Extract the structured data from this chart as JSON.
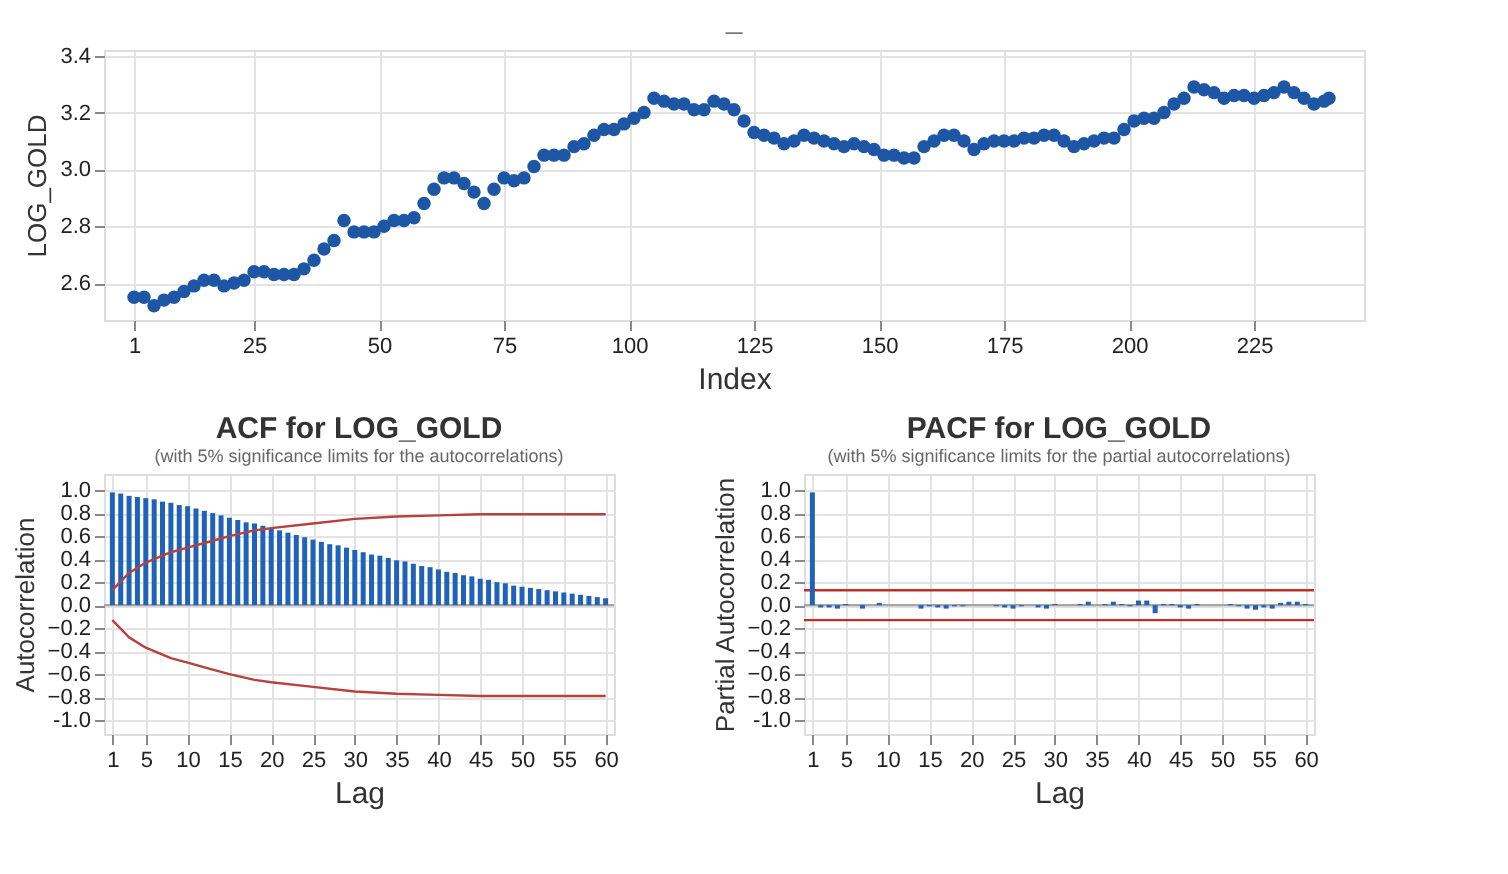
{
  "chart_data": [
    {
      "type": "scatter",
      "title": "_",
      "xlabel": "Index",
      "ylabel": "LOG_GOLD",
      "marker": "circle",
      "grid": true,
      "x": [
        1,
        3,
        5,
        7,
        9,
        11,
        13,
        15,
        17,
        19,
        21,
        23,
        25,
        27,
        29,
        31,
        33,
        35,
        37,
        39,
        41,
        43,
        45,
        47,
        49,
        51,
        53,
        55,
        57,
        59,
        61,
        63,
        65,
        67,
        69,
        71,
        73,
        75,
        77,
        79,
        81,
        83,
        85,
        87,
        89,
        91,
        93,
        95,
        97,
        99,
        101,
        103,
        105,
        107,
        109,
        111,
        113,
        115,
        117,
        119,
        121,
        123,
        125,
        127,
        129,
        131,
        133,
        135,
        137,
        139,
        141,
        143,
        145,
        147,
        149,
        151,
        153,
        155,
        157,
        159,
        161,
        163,
        165,
        167,
        169,
        171,
        173,
        175,
        177,
        179,
        181,
        183,
        185,
        187,
        189,
        191,
        193,
        195,
        197,
        199,
        201,
        203,
        205,
        207,
        209,
        211,
        213,
        215,
        217,
        219,
        221,
        223,
        225,
        227,
        229,
        231,
        233,
        235,
        237,
        239,
        240
      ],
      "series": [
        {
          "color": "#1d56a5",
          "values": [
            2.55,
            2.55,
            2.52,
            2.54,
            2.55,
            2.57,
            2.59,
            2.61,
            2.61,
            2.59,
            2.6,
            2.61,
            2.64,
            2.64,
            2.63,
            2.63,
            2.63,
            2.65,
            2.68,
            2.72,
            2.75,
            2.82,
            2.78,
            2.78,
            2.78,
            2.8,
            2.82,
            2.82,
            2.83,
            2.88,
            2.93,
            2.97,
            2.97,
            2.95,
            2.92,
            2.88,
            2.93,
            2.97,
            2.96,
            2.97,
            3.01,
            3.05,
            3.05,
            3.05,
            3.08,
            3.09,
            3.12,
            3.14,
            3.14,
            3.16,
            3.18,
            3.2,
            3.25,
            3.24,
            3.23,
            3.23,
            3.21,
            3.21,
            3.24,
            3.23,
            3.21,
            3.17,
            3.13,
            3.12,
            3.11,
            3.09,
            3.1,
            3.12,
            3.11,
            3.1,
            3.09,
            3.08,
            3.09,
            3.08,
            3.07,
            3.05,
            3.05,
            3.04,
            3.04,
            3.08,
            3.1,
            3.12,
            3.12,
            3.1,
            3.07,
            3.09,
            3.1,
            3.1,
            3.1,
            3.11,
            3.11,
            3.12,
            3.12,
            3.1,
            3.08,
            3.09,
            3.1,
            3.11,
            3.11,
            3.14,
            3.17,
            3.18,
            3.18,
            3.2,
            3.23,
            3.25,
            3.29,
            3.28,
            3.27,
            3.25,
            3.26,
            3.26,
            3.25,
            3.26,
            3.27,
            3.29,
            3.27,
            3.25,
            3.23,
            3.24,
            3.25
          ]
        }
      ],
      "xlim": [
        -5,
        247
      ],
      "ylim": [
        2.47,
        3.42
      ],
      "xticks": [
        1,
        25,
        50,
        75,
        100,
        125,
        150,
        175,
        200,
        225
      ],
      "yticks": [
        2.6,
        2.8,
        {
          "value": 3,
          "label": "3.0"
        },
        3.2,
        3.4
      ]
    },
    {
      "type": "bar",
      "title": "ACF for LOG_GOLD",
      "subtitle": "(with 5% significance limits for the autocorrelations)",
      "xlabel": "Lag",
      "ylabel": "Autocorrelation",
      "grid": true,
      "x": [
        1,
        2,
        3,
        4,
        5,
        6,
        7,
        8,
        9,
        10,
        11,
        12,
        13,
        14,
        15,
        16,
        17,
        18,
        19,
        20,
        21,
        22,
        23,
        24,
        25,
        26,
        27,
        28,
        29,
        30,
        31,
        32,
        33,
        34,
        35,
        36,
        37,
        38,
        39,
        40,
        41,
        42,
        43,
        44,
        45,
        46,
        47,
        48,
        49,
        50,
        51,
        52,
        53,
        54,
        55,
        56,
        57,
        58,
        59,
        60
      ],
      "series": [
        {
          "color": "#1f62b8",
          "values": [
            0.98,
            0.97,
            0.95,
            0.94,
            0.93,
            0.92,
            0.9,
            0.89,
            0.87,
            0.86,
            0.84,
            0.82,
            0.8,
            0.78,
            0.76,
            0.74,
            0.72,
            0.71,
            0.69,
            0.67,
            0.65,
            0.63,
            0.61,
            0.59,
            0.57,
            0.55,
            0.53,
            0.52,
            0.5,
            0.48,
            0.46,
            0.44,
            0.43,
            0.41,
            0.39,
            0.38,
            0.36,
            0.34,
            0.33,
            0.31,
            0.29,
            0.28,
            0.26,
            0.25,
            0.23,
            0.22,
            0.2,
            0.19,
            0.17,
            0.16,
            0.15,
            0.14,
            0.13,
            0.12,
            0.11,
            0.1,
            0.09,
            0.08,
            0.07,
            0.06
          ]
        },
        {
          "type": "line",
          "color": "#b5423f",
          "x": [
            1,
            3,
            5,
            8,
            10,
            13,
            15,
            18,
            20,
            25,
            30,
            35,
            40,
            45,
            50,
            55,
            60
          ],
          "values": [
            0.13,
            0.28,
            0.37,
            0.46,
            0.5,
            0.56,
            0.6,
            0.65,
            0.67,
            0.71,
            0.75,
            0.77,
            0.78,
            0.79,
            0.79,
            0.79,
            0.79
          ]
        },
        {
          "type": "line",
          "color": "#b5423f",
          "x": [
            1,
            3,
            5,
            8,
            10,
            13,
            15,
            18,
            20,
            25,
            30,
            35,
            40,
            45,
            50,
            55,
            60
          ],
          "values": [
            -0.13,
            -0.28,
            -0.37,
            -0.46,
            -0.5,
            -0.56,
            -0.6,
            -0.65,
            -0.67,
            -0.71,
            -0.75,
            -0.77,
            -0.78,
            -0.79,
            -0.79,
            -0.79,
            -0.79
          ]
        }
      ],
      "ref_lines": [
        {
          "axis": "y",
          "value": 0,
          "color": "#a6a6a6"
        }
      ],
      "xlim": [
        0,
        61
      ],
      "ylim": [
        -1.12,
        1.14
      ],
      "xticks": [
        1,
        5,
        10,
        15,
        20,
        25,
        30,
        35,
        40,
        45,
        50,
        55,
        60
      ],
      "yticks": [
        {
          "value": -1,
          "label": "-1.0"
        },
        -0.8,
        -0.6,
        -0.4,
        -0.2,
        {
          "value": 0,
          "label": "0.0"
        },
        0.2,
        0.4,
        0.6,
        0.8,
        {
          "value": 1,
          "label": "1.0"
        }
      ]
    },
    {
      "type": "bar",
      "title": "PACF for LOG_GOLD",
      "subtitle": "(with 5% significance limits for the partial autocorrelations)",
      "xlabel": "Lag",
      "ylabel": "Partial Autocorrelation",
      "grid": true,
      "x": [
        1,
        2,
        3,
        4,
        5,
        6,
        7,
        8,
        9,
        10,
        11,
        12,
        13,
        14,
        15,
        16,
        17,
        18,
        19,
        20,
        21,
        22,
        23,
        24,
        25,
        26,
        27,
        28,
        29,
        30,
        31,
        32,
        33,
        34,
        35,
        36,
        37,
        38,
        39,
        40,
        41,
        42,
        43,
        44,
        45,
        46,
        47,
        48,
        49,
        50,
        51,
        52,
        53,
        54,
        55,
        56,
        57,
        58,
        59,
        60
      ],
      "series": [
        {
          "color": "#1f62b8",
          "values": [
            0.98,
            -0.02,
            -0.02,
            -0.03,
            0.01,
            0.0,
            -0.03,
            0.0,
            0.02,
            0.0,
            0.0,
            0.0,
            0.0,
            -0.03,
            -0.01,
            -0.02,
            -0.03,
            -0.01,
            -0.01,
            0.0,
            0.0,
            0.0,
            -0.01,
            -0.02,
            -0.03,
            -0.01,
            0.0,
            -0.02,
            -0.03,
            0.01,
            0.0,
            0.0,
            0.01,
            0.03,
            0.0,
            0.01,
            0.03,
            0.01,
            -0.01,
            0.04,
            0.04,
            -0.07,
            0.01,
            0.01,
            -0.02,
            -0.03,
            0.01,
            0.0,
            0.0,
            0.0,
            0.01,
            -0.01,
            -0.03,
            -0.04,
            -0.02,
            -0.03,
            0.02,
            0.03,
            0.03,
            0.01
          ]
        }
      ],
      "ref_lines": [
        {
          "axis": "y",
          "value": 0,
          "color": "#a6a6a6"
        },
        {
          "axis": "y",
          "value": 0.13,
          "color": "#c0302b"
        },
        {
          "axis": "y",
          "value": -0.13,
          "color": "#c0302b"
        }
      ],
      "xlim": [
        0,
        61
      ],
      "ylim": [
        -1.12,
        1.14
      ],
      "xticks": [
        1,
        5,
        10,
        15,
        20,
        25,
        30,
        35,
        40,
        45,
        50,
        55,
        60
      ],
      "yticks": [
        {
          "value": -1,
          "label": "-1.0"
        },
        -0.8,
        -0.6,
        -0.4,
        -0.2,
        {
          "value": 0,
          "label": "0.0"
        },
        0.2,
        0.4,
        0.6,
        0.8,
        {
          "value": 1,
          "label": "1.0"
        }
      ]
    }
  ]
}
